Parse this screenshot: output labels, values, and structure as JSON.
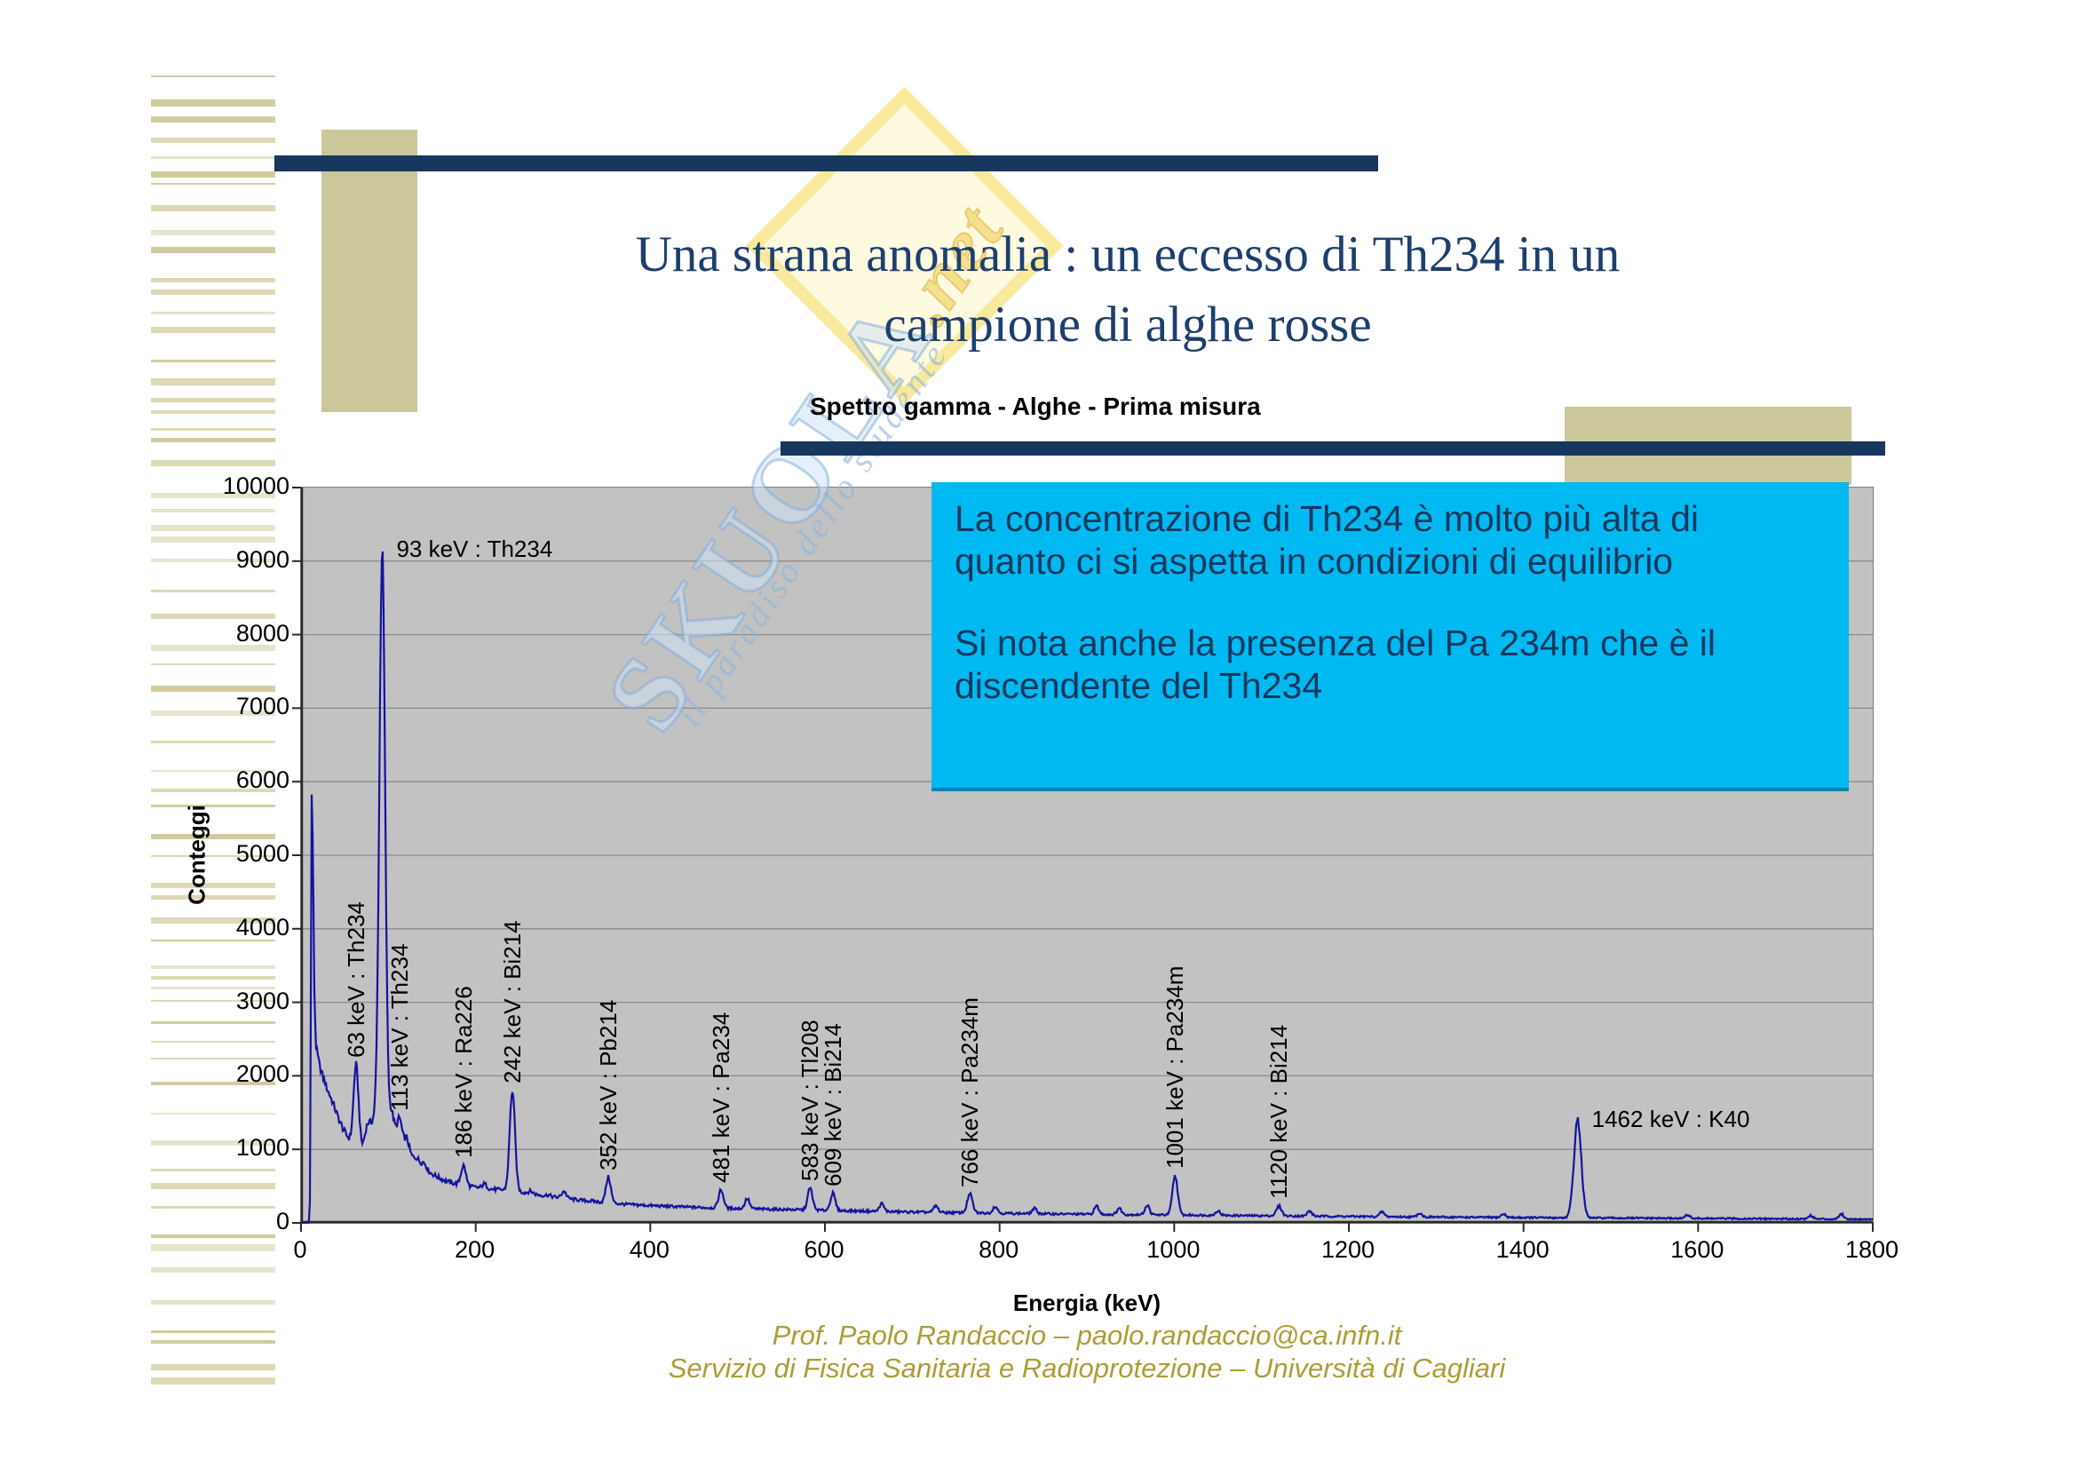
{
  "header": {
    "title_line1": "Una strana anomalia : un eccesso di Th234 in un",
    "title_line2": "campione di alghe rosse"
  },
  "info_box": {
    "line1": "La concentrazione di Th234 è molto più alta di quanto ci si aspetta in condizioni di equilibrio",
    "line2": "Si nota anche la presenza del Pa 234m che è il discendente del Th234"
  },
  "footer": {
    "credit_line1": "Prof. Paolo Randaccio – paolo.randaccio@ca.infn.it",
    "credit_line2": "Servizio di Fisica Sanitaria e Radioprotezione – Università di Cagliari"
  },
  "watermark": {
    "brand": "SKUOLA",
    "suffix": ".net",
    "tagline": "il paradiso dello studente"
  },
  "colors": {
    "accent_navy": "#17375E",
    "title_text": "#1D3F6D",
    "khaki": "#CBC79B",
    "stripe_tones": [
      "#DCD9B4",
      "#D0CC9E",
      "#E5E3CB"
    ],
    "plot_bg": "#C2C2C2",
    "grid": "#8A8A8A",
    "axis": "#2A2A2A",
    "spectrum_line": "#14149E",
    "info_box_bg": "#00B9F0",
    "info_box_text": "#17375E",
    "footer_text": "#AC9D35"
  },
  "chart_data": {
    "type": "line",
    "title": "Spettro gamma - Alghe - Prima misura",
    "xlabel": "Energia (keV)",
    "ylabel": "Conteggi",
    "xlim": [
      0,
      1800
    ],
    "ylim": [
      0,
      10000
    ],
    "x_ticks": [
      0,
      200,
      400,
      600,
      800,
      1000,
      1200,
      1400,
      1600,
      1800
    ],
    "y_ticks": [
      0,
      1000,
      2000,
      3000,
      4000,
      5000,
      6000,
      7000,
      8000,
      9000,
      10000
    ],
    "grid": "horizontal gridlines every 1000 counts",
    "legend": "none",
    "series_name": "Spettro gamma - Alghe - Prima misura",
    "continuum_points": [
      [
        0,
        2
      ],
      [
        9,
        2
      ],
      [
        10.5,
        400
      ],
      [
        12,
        5900
      ],
      [
        13.5,
        5200
      ],
      [
        15,
        3300
      ],
      [
        17,
        2400
      ],
      [
        21,
        2150
      ],
      [
        25,
        1990
      ],
      [
        30,
        1820
      ],
      [
        36,
        1650
      ],
      [
        42,
        1450
      ],
      [
        48,
        1280
      ],
      [
        55,
        1140
      ],
      [
        60,
        1080
      ],
      [
        70,
        1030
      ],
      [
        76,
        1250
      ],
      [
        82,
        1380
      ],
      [
        88,
        1500
      ],
      [
        97,
        1450
      ],
      [
        103,
        1350
      ],
      [
        110,
        1150
      ],
      [
        118,
        1000
      ],
      [
        127,
        900
      ],
      [
        136,
        800
      ],
      [
        148,
        680
      ],
      [
        160,
        600
      ],
      [
        172,
        545
      ],
      [
        188,
        505
      ],
      [
        205,
        475
      ],
      [
        222,
        455
      ],
      [
        240,
        440
      ],
      [
        258,
        410
      ],
      [
        278,
        370
      ],
      [
        298,
        340
      ],
      [
        320,
        310
      ],
      [
        345,
        280
      ],
      [
        372,
        252
      ],
      [
        400,
        235
      ],
      [
        435,
        218
      ],
      [
        470,
        205
      ],
      [
        510,
        192
      ],
      [
        550,
        183
      ],
      [
        595,
        172
      ],
      [
        645,
        160
      ],
      [
        700,
        148
      ],
      [
        760,
        137
      ],
      [
        820,
        128
      ],
      [
        880,
        120
      ],
      [
        940,
        113
      ],
      [
        1000,
        108
      ],
      [
        1070,
        100
      ],
      [
        1140,
        93
      ],
      [
        1210,
        87
      ],
      [
        1290,
        80
      ],
      [
        1370,
        74
      ],
      [
        1450,
        69
      ],
      [
        1540,
        64
      ],
      [
        1640,
        58
      ],
      [
        1740,
        53
      ],
      [
        1800,
        50
      ]
    ],
    "peaks": [
      {
        "energy": 63,
        "counts": 2150,
        "sigma": 2.8,
        "label": "63 keV : Th234",
        "orientation": "vertical"
      },
      {
        "energy": 93,
        "counts": 9150,
        "sigma": 3.2,
        "label": "93 keV : Th234",
        "orientation": "horizontal"
      },
      {
        "energy": 113,
        "counts": 1420,
        "sigma": 2.8,
        "label": "113 keV : Th234",
        "orientation": "vertical"
      },
      {
        "energy": 186,
        "counts": 780,
        "sigma": 2.8,
        "label": "186 keV : Ra226",
        "orientation": "vertical"
      },
      {
        "energy": 242,
        "counts": 1800,
        "sigma": 3.0,
        "label": "242 keV : Bi214",
        "orientation": "vertical"
      },
      {
        "energy": 352,
        "counts": 620,
        "sigma": 2.8,
        "label": "352 keV : Pb214",
        "orientation": "vertical"
      },
      {
        "energy": 481,
        "counts": 450,
        "sigma": 2.8,
        "label": "481 keV : Pa234",
        "orientation": "vertical"
      },
      {
        "energy": 583,
        "counts": 470,
        "sigma": 2.8,
        "label": "583 keV : Tl208",
        "orientation": "vertical"
      },
      {
        "energy": 609,
        "counts": 400,
        "sigma": 2.8,
        "label": "609 keV : Bi214",
        "orientation": "vertical"
      },
      {
        "energy": 766,
        "counts": 390,
        "sigma": 3.0,
        "label": "766 keV : Pa234m",
        "orientation": "vertical"
      },
      {
        "energy": 1001,
        "counts": 640,
        "sigma": 3.0,
        "label": "1001 keV : Pa234m",
        "orientation": "vertical"
      },
      {
        "energy": 1120,
        "counts": 225,
        "sigma": 3.0,
        "label": "1120 keV : Bi214",
        "orientation": "vertical"
      },
      {
        "energy": 1462,
        "counts": 1400,
        "sigma": 4.2,
        "label": "1462 keV : K40",
        "orientation": "horizontal"
      }
    ],
    "minor_peaks": [
      [
        76,
        1350
      ],
      [
        104,
        1500
      ],
      [
        121,
        1150
      ],
      [
        133,
        880
      ],
      [
        141,
        820
      ],
      [
        210,
        530
      ],
      [
        263,
        430
      ],
      [
        283,
        380
      ],
      [
        301,
        430
      ],
      [
        511,
        330
      ],
      [
        665,
        260
      ],
      [
        727,
        230
      ],
      [
        795,
        225
      ],
      [
        840,
        195
      ],
      [
        911,
        230
      ],
      [
        937,
        200
      ],
      [
        969,
        240
      ],
      [
        1050,
        165
      ],
      [
        1155,
        160
      ],
      [
        1238,
        150
      ],
      [
        1281,
        135
      ],
      [
        1377,
        120
      ],
      [
        1588,
        110
      ],
      [
        1729,
        100
      ],
      [
        1764,
        125
      ]
    ]
  }
}
